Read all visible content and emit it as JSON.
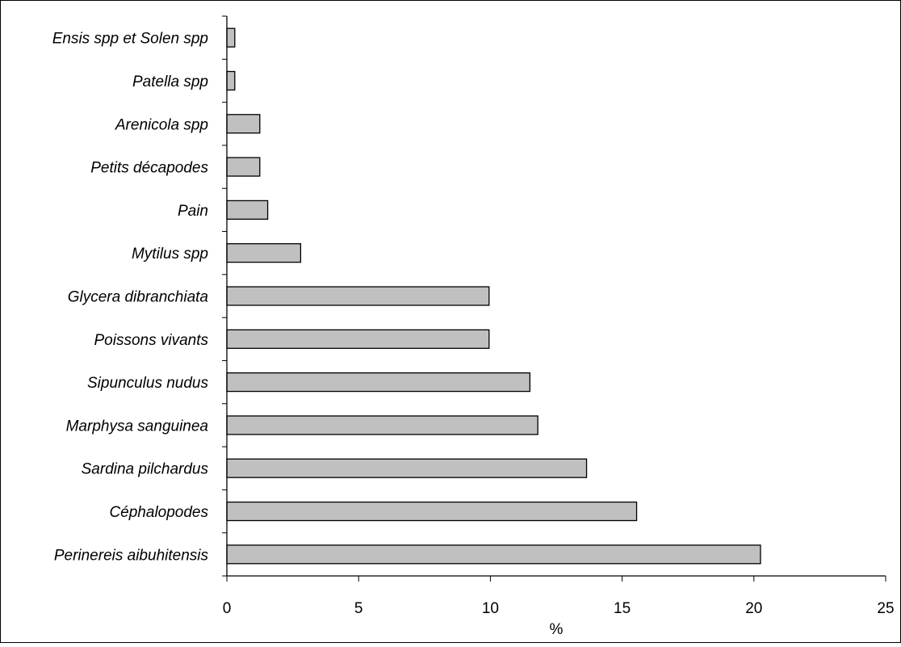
{
  "chart_data": {
    "type": "bar",
    "orientation": "horizontal",
    "categories": [
      "Ensis spp et Solen spp",
      "Patella spp",
      "Arenicola spp",
      "Petits décapodes",
      "Pain",
      "Mytilus spp",
      "Glycera dibranchiata",
      "Poissons vivants",
      "Sipunculus nudus",
      "Marphysa sanguinea",
      "Sardina pilchardus",
      "Céphalopodes",
      "Perinereis aibuhitensis"
    ],
    "values": [
      0.3,
      0.3,
      1.25,
      1.25,
      1.55,
      2.8,
      9.95,
      9.95,
      11.5,
      11.8,
      13.65,
      15.55,
      20.25
    ],
    "xlabel": "%",
    "ylabel": "",
    "title": "",
    "xlim": [
      0,
      25
    ],
    "xticks": [
      "0",
      "5",
      "10",
      "15",
      "20",
      "25"
    ],
    "grid": false,
    "bar_color": "#c0c0c0",
    "bar_edge_color": "#000000"
  }
}
